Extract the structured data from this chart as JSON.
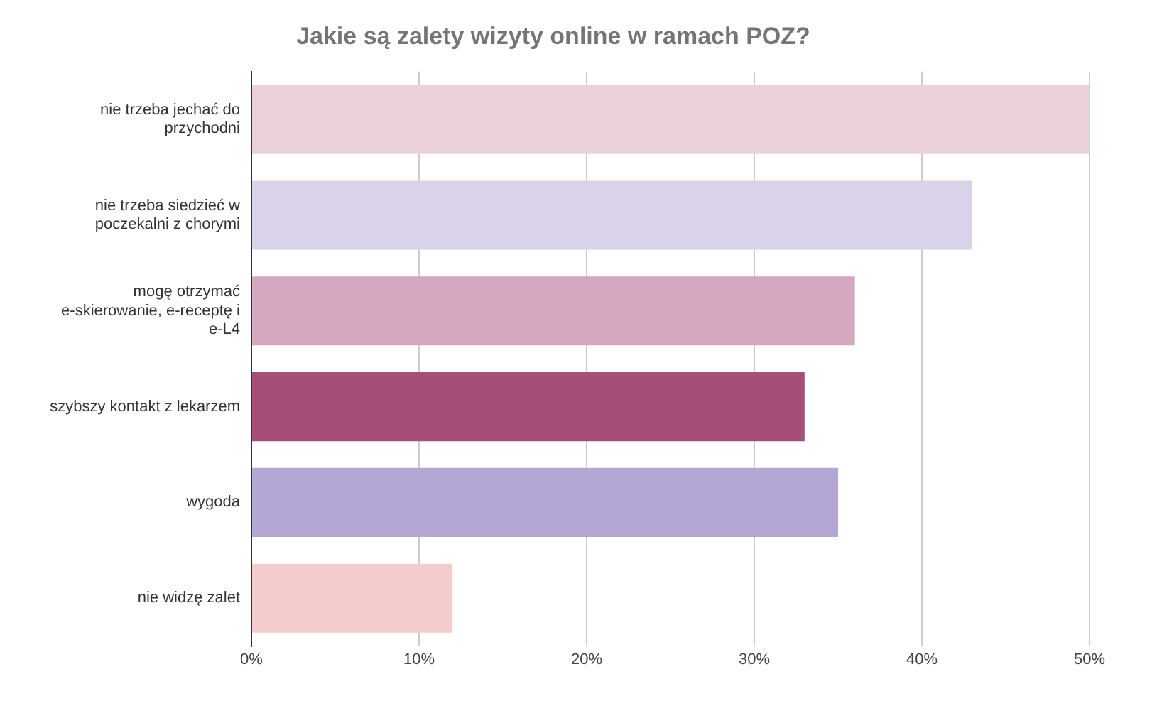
{
  "chart_data": {
    "type": "bar",
    "orientation": "horizontal",
    "title": "Jakie są zalety wizyty online w ramach POZ?",
    "categories": [
      "nie trzeba jechać do przychodni",
      "nie trzeba siedzieć w poczekalni z chorymi",
      "mogę otrzymać e-skierowanie, e-receptę i e-L4",
      "szybszy kontakt z lekarzem",
      "wygoda",
      "nie widzę zalet"
    ],
    "values": [
      50,
      43,
      36,
      33,
      35,
      12
    ],
    "colors": [
      "#ead1dc",
      "#d9d2e9",
      "#d5a6bd",
      "#a64d79",
      "#b4a7d6",
      "#f4cccc"
    ],
    "xlim": [
      0,
      50
    ],
    "xticks": [
      {
        "value": 0,
        "label": "0%"
      },
      {
        "value": 10,
        "label": "10%"
      },
      {
        "value": 20,
        "label": "20%"
      },
      {
        "value": 30,
        "label": "30%"
      },
      {
        "value": 40,
        "label": "40%"
      },
      {
        "value": 50,
        "label": "50%"
      }
    ],
    "grid": "x",
    "legend": false
  }
}
